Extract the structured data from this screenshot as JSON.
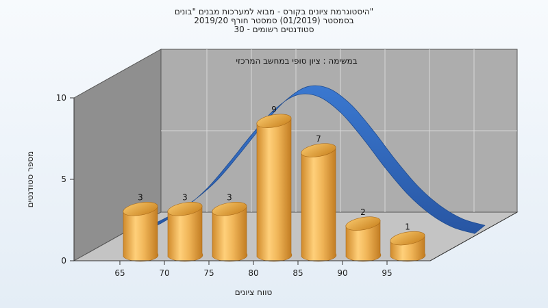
{
  "chart_data": {
    "type": "bar",
    "title_lines": [
      "היסטוגרמת ציונים בקורס - מבוא למערכות מבנים \"בונים\"",
      "בסמסטר  (01/2019)  סמסטר חורף 2019/20",
      "סטודנטים רשומים - 30"
    ],
    "annotation": "במשימה : ציון סופי במחשב המרכזי",
    "xlabel": "טווח ציונים",
    "ylabel": "מספר סטודנטים",
    "x_ticks": [
      "65",
      "70",
      "75",
      "80",
      "85",
      "90",
      "95"
    ],
    "y_ticks": [
      "0",
      "5",
      "10"
    ],
    "ylim": [
      0,
      10
    ],
    "values": [
      3,
      3,
      3,
      9,
      7,
      2,
      1
    ],
    "data_labels": [
      "3",
      "3",
      "3",
      "9",
      "7",
      "2",
      "1"
    ],
    "series": [
      {
        "values": [
          3,
          3,
          3,
          9,
          7,
          2,
          1
        ]
      }
    ],
    "curve": {
      "note": "normal distribution ribbon drawn behind bars",
      "x": [
        62.5,
        65,
        67.5,
        70,
        72.5,
        75,
        77.5,
        80,
        82.5,
        85,
        87.5,
        90,
        92.5,
        95,
        97.5,
        100
      ],
      "y": [
        0.2,
        0.9,
        1.8,
        3.0,
        4.6,
        6.3,
        7.8,
        8.7,
        8.6,
        7.6,
        6.0,
        4.2,
        2.6,
        1.4,
        0.6,
        0.2
      ]
    },
    "colors": {
      "bar": "#e8a94a",
      "bar_top": "#d58a25",
      "curve": "#2f66b8",
      "back_wall": "#a6a6a6",
      "side_wall": "#8a8a8a",
      "floor": "#bdbdbd"
    },
    "grid": true
  }
}
